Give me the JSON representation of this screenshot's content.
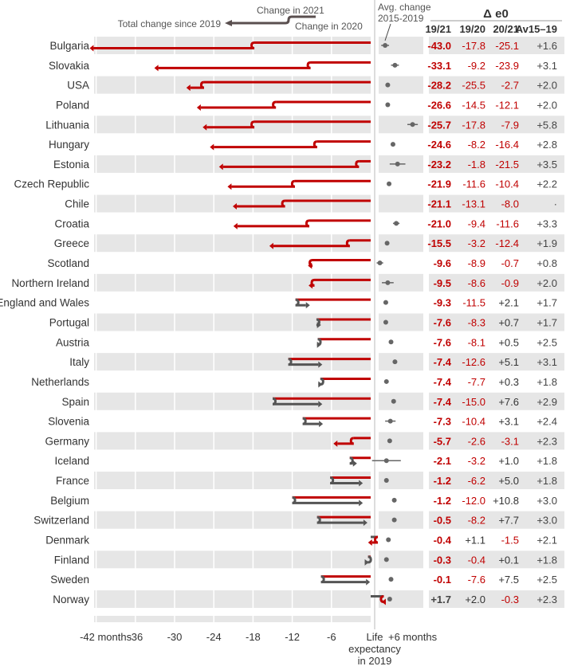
{
  "chart_data": {
    "type": "arrow-range",
    "legend": {
      "change_2021": "Change in 2021",
      "total_change": "Total change since 2019",
      "change_2020": "Change in 2020",
      "avg_change": "Avg. change 2015-2019"
    },
    "table_header": {
      "title": "Δ e0",
      "columns": [
        "19/21",
        "19/20",
        "20/21",
        "Av15–19"
      ]
    },
    "x_axis": {
      "ticks": [
        -42,
        -36,
        -30,
        -24,
        -18,
        -12,
        -6,
        0,
        6
      ],
      "tick_labels": [
        "-42 months",
        "-36",
        "-30",
        "-24",
        "-18",
        "-12",
        "-6",
        "Life expectancy in 2019",
        "+6 months"
      ],
      "range": [
        -44,
        6
      ]
    },
    "colors": {
      "decline": "#c00000",
      "increase": "#555555",
      "band": "#e6e6e6",
      "dot": "#666666"
    },
    "rows": [
      {
        "country": "Bulgaria",
        "d1921": "-43.0",
        "d1920": "-17.8",
        "d2021": "-25.1",
        "av": "+1.6",
        "total": -43.0,
        "v2020": -17.8,
        "avg": 1.6,
        "ci": 0.6
      },
      {
        "country": "Slovakia",
        "d1921": "-33.1",
        "d1920": "-9.2",
        "d2021": "-23.9",
        "av": "+3.1",
        "total": -33.1,
        "v2020": -9.2,
        "avg": 3.1,
        "ci": 0.6
      },
      {
        "country": "USA",
        "d1921": "-28.2",
        "d1920": "-25.5",
        "d2021": "-2.7",
        "av": "+2.0",
        "total": -28.2,
        "v2020": -25.5,
        "avg": 2.0,
        "ci": 0
      },
      {
        "country": "Poland",
        "d1921": "-26.6",
        "d1920": "-14.5",
        "d2021": "-12.1",
        "av": "+2.0",
        "total": -26.6,
        "v2020": -14.5,
        "avg": 2.0,
        "ci": 0
      },
      {
        "country": "Lithuania",
        "d1921": "-25.7",
        "d1920": "-17.8",
        "d2021": "-7.9",
        "av": "+5.8",
        "total": -25.7,
        "v2020": -17.8,
        "avg": 5.8,
        "ci": 0.8
      },
      {
        "country": "Hungary",
        "d1921": "-24.6",
        "d1920": "-8.2",
        "d2021": "-16.4",
        "av": "+2.8",
        "total": -24.6,
        "v2020": -8.2,
        "avg": 2.8,
        "ci": 0
      },
      {
        "country": "Estonia",
        "d1921": "-23.2",
        "d1920": "-1.8",
        "d2021": "-21.5",
        "av": "+3.5",
        "total": -23.2,
        "v2020": -1.8,
        "avg": 3.5,
        "ci": 1.2
      },
      {
        "country": "Czech Republic",
        "d1921": "-21.9",
        "d1920": "-11.6",
        "d2021": "-10.4",
        "av": "+2.2",
        "total": -21.9,
        "v2020": -11.6,
        "avg": 2.2,
        "ci": 0
      },
      {
        "country": "Chile",
        "d1921": "-21.1",
        "d1920": "-13.1",
        "d2021": "-8.0",
        "av": "·",
        "total": -21.1,
        "v2020": -13.1,
        "avg": null,
        "ci": 0
      },
      {
        "country": "Croatia",
        "d1921": "-21.0",
        "d1920": "-9.4",
        "d2021": "-11.6",
        "av": "+3.3",
        "total": -21.0,
        "v2020": -9.4,
        "avg": 3.3,
        "ci": 0.5
      },
      {
        "country": "Greece",
        "d1921": "-15.5",
        "d1920": "-3.2",
        "d2021": "-12.4",
        "av": "+1.9",
        "total": -15.5,
        "v2020": -3.2,
        "avg": 1.9,
        "ci": 0
      },
      {
        "country": "Scotland",
        "d1921": "-9.6",
        "d1920": "-8.9",
        "d2021": "-0.7",
        "av": "+0.8",
        "total": -9.6,
        "v2020": -8.9,
        "avg": 0.8,
        "ci": 0.5
      },
      {
        "country": "Northern Ireland",
        "d1921": "-9.5",
        "d1920": "-8.6",
        "d2021": "-0.9",
        "av": "+2.0",
        "total": -9.5,
        "v2020": -8.6,
        "avg": 2.0,
        "ci": 0.9
      },
      {
        "country": "England and Wales",
        "d1921": "-9.3",
        "d1920": "-11.5",
        "d2021": "+2.1",
        "av": "+1.7",
        "total": -9.3,
        "v2020": -11.5,
        "avg": 1.7,
        "ci": 0
      },
      {
        "country": "Portugal",
        "d1921": "-7.6",
        "d1920": "-8.3",
        "d2021": "+0.7",
        "av": "+1.7",
        "total": -7.6,
        "v2020": -8.3,
        "avg": 1.7,
        "ci": 0
      },
      {
        "country": "Austria",
        "d1921": "-7.6",
        "d1920": "-8.1",
        "d2021": "+0.5",
        "av": "+2.5",
        "total": -7.6,
        "v2020": -8.1,
        "avg": 2.5,
        "ci": 0
      },
      {
        "country": "Italy",
        "d1921": "-7.4",
        "d1920": "-12.6",
        "d2021": "+5.1",
        "av": "+3.1",
        "total": -7.4,
        "v2020": -12.6,
        "avg": 3.1,
        "ci": 0
      },
      {
        "country": "Netherlands",
        "d1921": "-7.4",
        "d1920": "-7.7",
        "d2021": "+0.3",
        "av": "+1.8",
        "total": -7.4,
        "v2020": -7.7,
        "avg": 1.8,
        "ci": 0
      },
      {
        "country": "Spain",
        "d1921": "-7.4",
        "d1920": "-15.0",
        "d2021": "+7.6",
        "av": "+2.9",
        "total": -7.4,
        "v2020": -15.0,
        "avg": 2.9,
        "ci": 0
      },
      {
        "country": "Slovenia",
        "d1921": "-7.3",
        "d1920": "-10.4",
        "d2021": "+3.1",
        "av": "+2.4",
        "total": -7.3,
        "v2020": -10.4,
        "avg": 2.4,
        "ci": 0.8
      },
      {
        "country": "Germany",
        "d1921": "-5.7",
        "d1920": "-2.6",
        "d2021": "-3.1",
        "av": "+2.3",
        "total": -5.7,
        "v2020": -2.6,
        "avg": 2.3,
        "ci": 0
      },
      {
        "country": "Iceland",
        "d1921": "-2.1",
        "d1920": "-3.2",
        "d2021": "+1.0",
        "av": "+1.8",
        "total": -2.1,
        "v2020": -3.2,
        "avg": 1.8,
        "ci": 2.2
      },
      {
        "country": "France",
        "d1921": "-1.2",
        "d1920": "-6.2",
        "d2021": "+5.0",
        "av": "+1.8",
        "total": -1.2,
        "v2020": -6.2,
        "avg": 1.8,
        "ci": 0
      },
      {
        "country": "Belgium",
        "d1921": "-1.2",
        "d1920": "-12.0",
        "d2021": "+10.8",
        "av": "+3.0",
        "total": -1.2,
        "v2020": -12.0,
        "avg": 3.0,
        "ci": 0
      },
      {
        "country": "Switzerland",
        "d1921": "-0.5",
        "d1920": "-8.2",
        "d2021": "+7.7",
        "av": "+3.0",
        "total": -0.5,
        "v2020": -8.2,
        "avg": 3.0,
        "ci": 0
      },
      {
        "country": "Denmark",
        "d1921": "-0.4",
        "d1920": "+1.1",
        "d2021": "-1.5",
        "av": "+2.1",
        "total": -0.4,
        "v2020": 1.1,
        "avg": 2.1,
        "ci": 0
      },
      {
        "country": "Finland",
        "d1921": "-0.3",
        "d1920": "-0.4",
        "d2021": "+0.1",
        "av": "+1.8",
        "total": -0.3,
        "v2020": -0.4,
        "avg": 1.8,
        "ci": 0
      },
      {
        "country": "Sweden",
        "d1921": "-0.1",
        "d1920": "-7.6",
        "d2021": "+7.5",
        "av": "+2.5",
        "total": -0.1,
        "v2020": -7.6,
        "avg": 2.5,
        "ci": 0
      },
      {
        "country": "Norway",
        "d1921": "+1.7",
        "d1920": "+2.0",
        "d2021": "-0.3",
        "av": "+2.3",
        "total": 1.7,
        "v2020": 2.0,
        "avg": 2.3,
        "ci": 0
      }
    ]
  }
}
